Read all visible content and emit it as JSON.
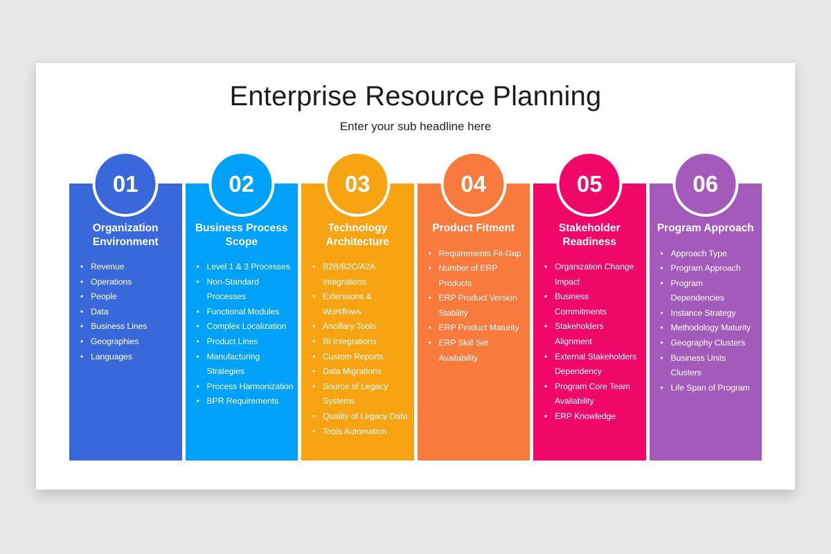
{
  "slide": {
    "title": "Enterprise Resource Planning",
    "subtitle": "Enter your sub headline here"
  },
  "columns": [
    {
      "number": "01",
      "title": "Organization Environment",
      "color": "#3968db",
      "items": [
        "Revenue",
        "Operations",
        "People",
        "Data",
        "Business Lines",
        "Geographies",
        "Languages"
      ]
    },
    {
      "number": "02",
      "title": "Business Process Scope",
      "color": "#00a1f8",
      "items": [
        "Level 1 & 3 Processes",
        "Non-Standard Processes",
        "Functional Modules",
        "Complex Localization",
        "Product Lines",
        "Manufacturing Strategies",
        "Process Harmonization",
        "BPR Requirements"
      ]
    },
    {
      "number": "03",
      "title": "Technology Architecture",
      "color": "#f7a312",
      "items": [
        "B2B/B2C/A2A Integrations",
        "Extensions & Workflows",
        "Ancillary Tools",
        "BI Integrations",
        "Custom Reports",
        "Data Migrations",
        "Source of Legacy Systems",
        "Quality of Legacy Data",
        "Tools Automation"
      ]
    },
    {
      "number": "04",
      "title": "Product Fitment",
      "color": "#f97a3d",
      "items": [
        "Requirements Fit-Gap",
        "Number of ERP Products",
        "ERP Product Version Stability",
        "ERP Product Maturity",
        "ERP Skill Set Availability"
      ]
    },
    {
      "number": "05",
      "title": "Stakeholder Readiness",
      "color": "#f00868",
      "items": [
        "Organization Change Impact",
        "Business Commitments",
        "Stakeholders Alignment",
        "External Stakeholders Dependency",
        "Program Core Team Availability",
        "ERP Knowledge"
      ]
    },
    {
      "number": "06",
      "title": "Program Approach",
      "color": "#a45aba",
      "items": [
        "Approach Type",
        "Program Approach",
        "Program Dependencies",
        "Instance Strategy",
        "Methodology Maturity",
        "Geography Clusters",
        "Business Units Clusters",
        "Life Span of Program"
      ]
    }
  ]
}
